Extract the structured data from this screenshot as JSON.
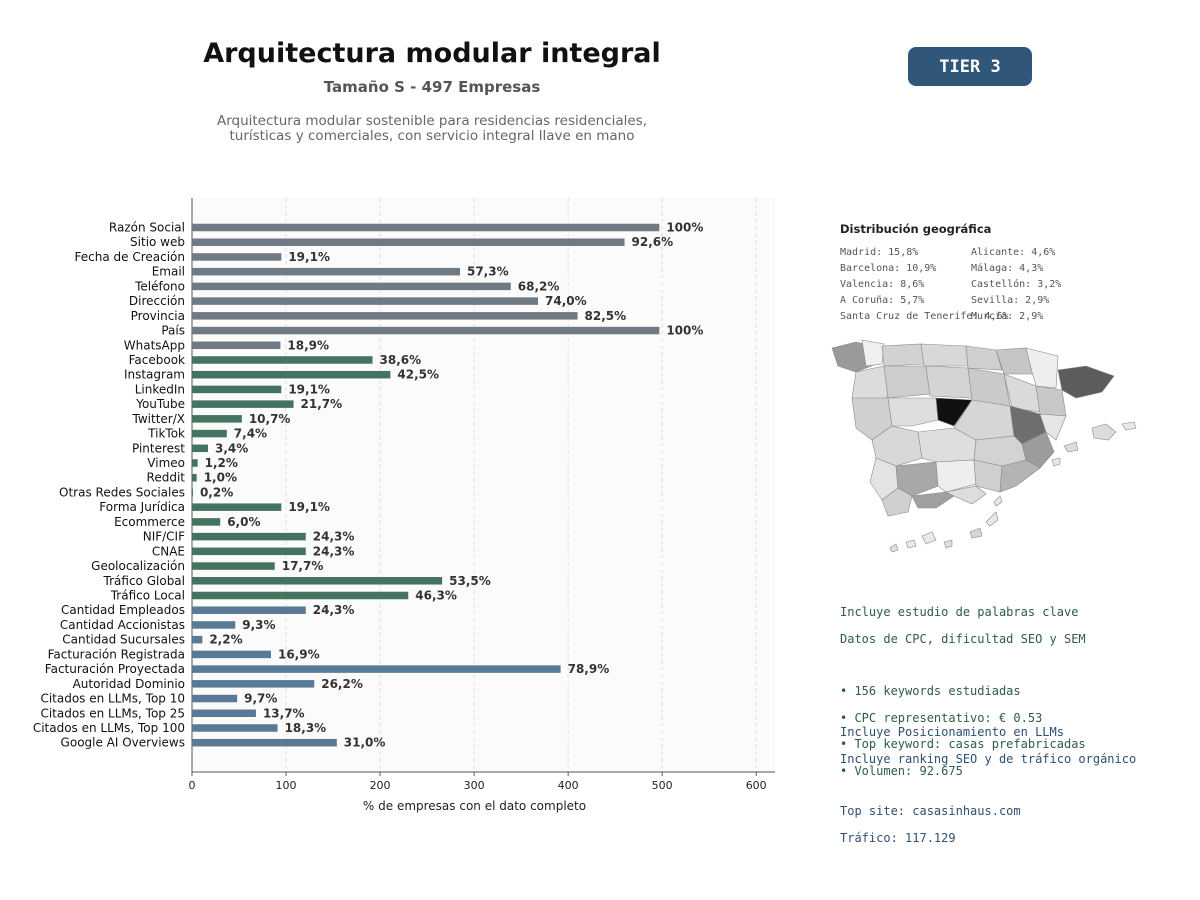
{
  "header": {
    "title": "Arquitectura modular integral",
    "subtitle": "Tamaño S - 497 Empresas",
    "description_lines": [
      "Arquitectura modular sostenible para residencias residenciales,",
      "turísticas y comerciales, con servicio integral llave en mano"
    ],
    "tier": "TIER 3"
  },
  "chart_data": {
    "type": "bar",
    "orientation": "horizontal",
    "xlabel": "% de empresas con el dato completo",
    "xlim": [
      0,
      620
    ],
    "xticks": [
      0,
      100,
      200,
      300,
      400,
      500,
      600
    ],
    "grid": "vertical dashed",
    "categories": [
      "Razón Social",
      "Sitio web",
      "Fecha de Creación",
      "Email",
      "Teléfono",
      "Dirección",
      "Provincia",
      "País",
      "WhatsApp",
      "Facebook",
      "Instagram",
      "LinkedIn",
      "YouTube",
      "Twitter/X",
      "TikTok",
      "Pinterest",
      "Vimeo",
      "Reddit",
      "Otras Redes Sociales",
      "Forma Jurídica",
      "Ecommerce",
      "NIF/CIF",
      "CNAE",
      "Geolocalización",
      "Tráfico Global",
      "Tráfico Local",
      "Cantidad Empleados",
      "Cantidad Accionistas",
      "Cantidad Sucursales",
      "Facturación Registrada",
      "Facturación Proyectada",
      "Autoridad Dominio",
      "Citados en LLMs, Top 10",
      "Citados en LLMs, Top 25",
      "Citados en LLMs, Top 100",
      "Google AI Overviews"
    ],
    "values": [
      497,
      460,
      95,
      285,
      339,
      368,
      410,
      497,
      94,
      192,
      211,
      95,
      108,
      53,
      37,
      17,
      6,
      5,
      1,
      95,
      30,
      121,
      121,
      88,
      266,
      230,
      121,
      46,
      11,
      84,
      392,
      130,
      48,
      68,
      91,
      154
    ],
    "labels": [
      "100%",
      "92,6%",
      "19,1%",
      "57,3%",
      "68,2%",
      "74,0%",
      "82,5%",
      "100%",
      "18,9%",
      "38,6%",
      "42,5%",
      "19,1%",
      "21,7%",
      "10,7%",
      "7,4%",
      "3,4%",
      "1,2%",
      "1,0%",
      "0,2%",
      "19,1%",
      "6,0%",
      "24,3%",
      "24,3%",
      "17,7%",
      "53,5%",
      "46,3%",
      "24,3%",
      "9,3%",
      "2,2%",
      "16,9%",
      "78,9%",
      "26,2%",
      "9,7%",
      "13,7%",
      "18,3%",
      "31,0%"
    ],
    "groups": [
      "gray",
      "gray",
      "gray",
      "gray",
      "gray",
      "gray",
      "gray",
      "gray",
      "gray",
      "green",
      "green",
      "green",
      "green",
      "green",
      "green",
      "green",
      "green",
      "green",
      "green",
      "green",
      "green",
      "green",
      "green",
      "green",
      "green",
      "green",
      "blue",
      "blue",
      "blue",
      "blue",
      "blue",
      "blue",
      "blue",
      "blue",
      "blue",
      "blue"
    ],
    "colors": {
      "gray": "#6f7a84",
      "green": "#44735f",
      "blue": "#597a96"
    }
  },
  "geo": {
    "title": "Distribución geográfica",
    "left_items": [
      "Madrid: 15,8%",
      "Barcelona: 10,9%",
      "Valencia: 8,6%",
      "A Coruña: 5,7%",
      "Santa Cruz de Tenerife: 4,6%"
    ],
    "right_items": [
      "Alicante: 4,6%",
      "Málaga: 4,3%",
      "Castellón: 3,2%",
      "Sevilla: 2,9%",
      "Murcia: 2,9%"
    ]
  },
  "keywords_block": {
    "lines": [
      "Incluye estudio de palabras clave",
      "Datos de CPC, dificultad SEO y SEM",
      "",
      "• 156 keywords estudiadas",
      "• CPC representativo: € 0.53",
      "• Top keyword: casas prefabricadas",
      "• Volumen: 92.675"
    ]
  },
  "llm_block": {
    "lines": [
      "Incluye Posicionamiento en LLMs",
      "Incluye ranking SEO y de tráfico orgánico",
      "",
      "Top site: casasinhaus.com",
      "Tráfico: 117.129"
    ]
  },
  "colors": {
    "tier_badge": "#30567a",
    "keywords_text": "#2d5e45",
    "llm_text": "#2f4f73"
  }
}
